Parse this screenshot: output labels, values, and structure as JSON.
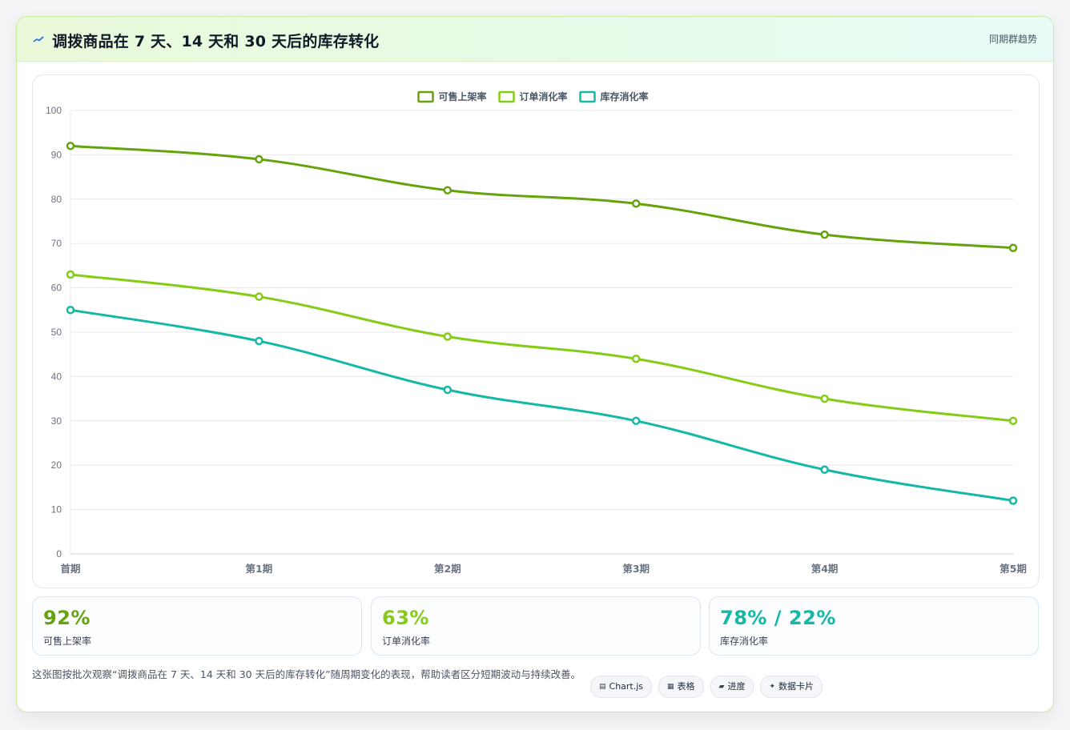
{
  "header": {
    "icon": "trend-line-icon",
    "title": "调拨商品在 7 天、14 天和 30 天后的库存转化",
    "right_link": "同期群趋势"
  },
  "chart_data": {
    "type": "line",
    "categories": [
      "首期",
      "第1期",
      "第2期",
      "第3期",
      "第4期",
      "第5期"
    ],
    "series": [
      {
        "name": "可售上架率",
        "color": "#65a30d",
        "values": [
          92,
          89,
          82,
          79,
          72,
          69
        ]
      },
      {
        "name": "订单消化率",
        "color": "#84cc16",
        "values": [
          63,
          58,
          49,
          44,
          35,
          30
        ]
      },
      {
        "name": "库存消化率",
        "color": "#14b8a6",
        "values": [
          55,
          48,
          37,
          30,
          19,
          12
        ]
      }
    ],
    "ylim": [
      0,
      100
    ],
    "yticks": [
      0,
      10,
      20,
      30,
      40,
      50,
      60,
      70,
      80,
      90,
      100
    ],
    "legend_position": "top-center",
    "grid": true
  },
  "kpis": [
    {
      "value": "92%",
      "label": "可售上架率",
      "color": "#65a30d"
    },
    {
      "value": "63%",
      "label": "订单消化率",
      "color": "#84cc16"
    },
    {
      "value": "78% / 22%",
      "label": "库存消化率",
      "color": "#14b8a6"
    }
  ],
  "description": "这张图按批次观察“调拨商品在 7 天、14 天和 30 天后的库存转化”随周期变化的表现，帮助读者区分短期波动与持续改善。",
  "tags": [
    {
      "icon": "chart-icon",
      "glyph": "▤",
      "label": "Chart.js"
    },
    {
      "icon": "table-icon",
      "glyph": "▦",
      "label": "表格"
    },
    {
      "icon": "progress-icon",
      "glyph": "▰",
      "label": "进度"
    },
    {
      "icon": "sparkle-icon",
      "glyph": "✦",
      "label": "数据卡片"
    }
  ]
}
